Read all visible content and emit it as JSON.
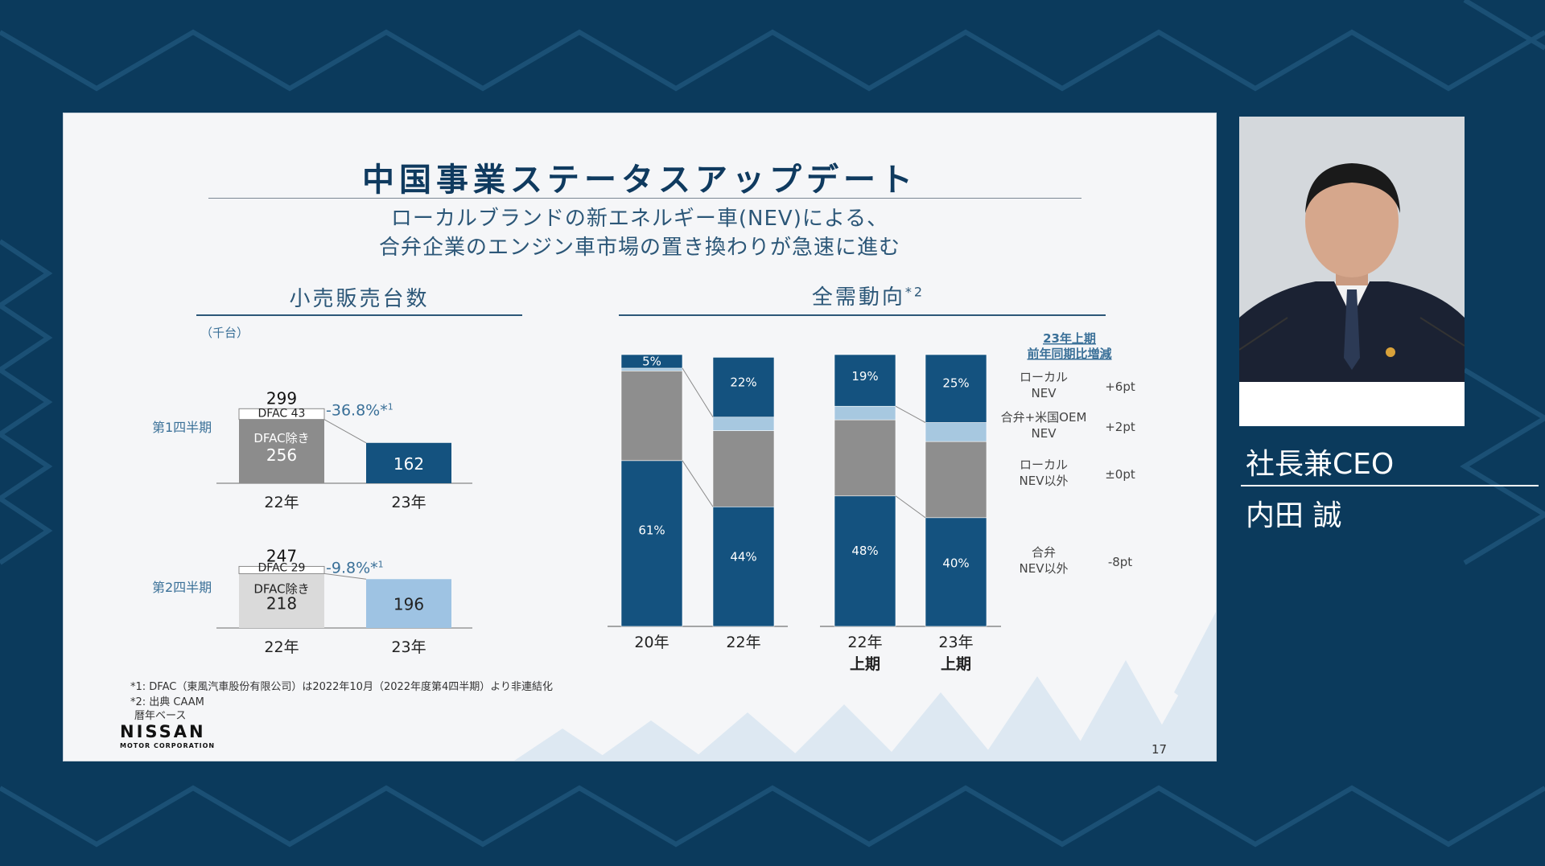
{
  "slide": {
    "title": "中国事業ステータスアップデート",
    "subtitle_line1": "ローカルブランドの新エネルギー車(NEV)による、",
    "subtitle_line2": "合弁企業のエンジン車市場の置き換わりが急速に進む",
    "left_heading": "小売販売台数",
    "right_heading": "全需動向",
    "right_heading_note": "*2",
    "unit": "（千台）",
    "footnotes": [
      "*1: DFAC（東風汽車股份有限公司）は2022年10月（2022年度第4四半期）より非連結化",
      "*2: 出典 CAAM",
      "暦年ベース"
    ],
    "logo": "NISSAN",
    "logo_sub": "MOTOR CORPORATION",
    "page_number": "17"
  },
  "speaker": {
    "role": "社長兼CEO",
    "name": "内田 誠"
  },
  "colors": {
    "background": "#0b3a5c",
    "navy": "#14527f",
    "gray_dark": "#8c8c8c",
    "gray_light": "#dadada",
    "light_blue": "#a7c8e0",
    "pale_blue": "#9ec3e3",
    "gray_mid": "#8e8e8e",
    "text_blue": "#3a7098"
  },
  "chart_data": [
    {
      "type": "bar",
      "title": "小売販売台数",
      "categories": [
        "22年",
        "23年"
      ],
      "quarters": [
        {
          "label": "第1四半期",
          "total_22": "299",
          "segments_22": [
            {
              "name": "DFAC",
              "label": "DFAC 43",
              "value": 43
            },
            {
              "name": "DFAC除き",
              "label": "DFAC除き",
              "value": 256,
              "value_label": "256"
            }
          ],
          "value_23": 162,
          "value_23_label": "162",
          "change": "-36.8%*",
          "change_note": "1"
        },
        {
          "label": "第2四半期",
          "total_22": "247",
          "segments_22": [
            {
              "name": "DFAC",
              "label": "DFAC 29",
              "value": 29
            },
            {
              "name": "DFAC除き",
              "label": "DFAC除き",
              "value": 218,
              "value_label": "218"
            }
          ],
          "value_23": 196,
          "value_23_label": "196",
          "change": "-9.8%*",
          "change_note": "1"
        }
      ]
    },
    {
      "type": "bar",
      "stacked": true,
      "percent": true,
      "title": "全需動向",
      "categories": [
        "20年",
        "22年",
        "22年|上期",
        "23年|上期"
      ],
      "series": [
        {
          "name": "合弁 NEV以外",
          "values": [
            61,
            44,
            48,
            40
          ],
          "labels": [
            "61%",
            "44%",
            "48%",
            "40%"
          ]
        },
        {
          "name": "ローカル NEV以外",
          "values": [
            33,
            28,
            28,
            28
          ]
        },
        {
          "name": "合弁+米国OEM NEV",
          "values": [
            1,
            5,
            5,
            7
          ]
        },
        {
          "name": "ローカル NEV",
          "values": [
            5,
            22,
            19,
            25
          ],
          "labels": [
            "5%",
            "22%",
            "19%",
            "25%"
          ]
        }
      ],
      "legend_header": [
        "23年上期",
        "前年同期比増減"
      ],
      "legend": [
        {
          "label": [
            "ローカル",
            "NEV"
          ],
          "change": "+6pt"
        },
        {
          "label": [
            "合弁+米国OEM",
            "NEV"
          ],
          "change": "+2pt"
        },
        {
          "label": [
            "ローカル",
            "NEV以外"
          ],
          "change": "±0pt"
        },
        {
          "label": [
            "合弁",
            "NEV以外"
          ],
          "change": "-8pt"
        }
      ]
    }
  ]
}
